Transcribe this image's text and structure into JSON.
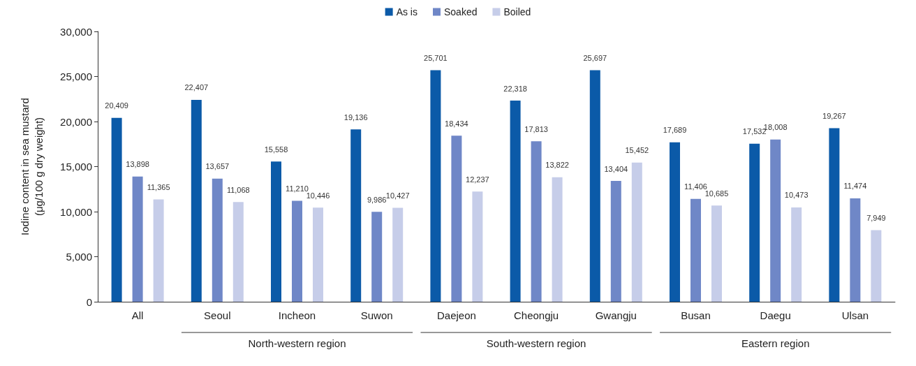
{
  "chart_data": {
    "type": "bar",
    "ylabel": "Iodine content in sea mustard\n(μg/100 g dry weight)",
    "categories": [
      "All",
      "Seoul",
      "Incheon",
      "Suwon",
      "Daejeon",
      "Cheongju",
      "Gwangju",
      "Busan",
      "Daegu",
      "Ulsan"
    ],
    "series": [
      {
        "name": "As is",
        "color": "#0b5aa8",
        "values": [
          20409,
          22407,
          15558,
          19136,
          25701,
          22318,
          25697,
          17689,
          17532,
          19267
        ],
        "value_labels": [
          "20,409",
          "22,407",
          "15,558",
          "19,136",
          "25,701",
          "22,318",
          "25,697",
          "17,689",
          "17,532",
          "19,267"
        ]
      },
      {
        "name": "Soaked",
        "color": "#6f87c7",
        "values": [
          13898,
          13657,
          11210,
          9986,
          18434,
          17813,
          13404,
          11406,
          18008,
          11474
        ],
        "value_labels": [
          "13,898",
          "13,657",
          "11,210",
          "9,986",
          "18,434",
          "17,813",
          "13,404",
          "11,406",
          "18,008",
          "11,474"
        ]
      },
      {
        "name": "Boiled",
        "color": "#c6cde9",
        "values": [
          11365,
          11068,
          10446,
          10427,
          12237,
          13822,
          15452,
          10685,
          10473,
          7949
        ],
        "value_labels": [
          "11,365",
          "11,068",
          "10,446",
          "10,427",
          "12,237",
          "13,822",
          "15,452",
          "10,685",
          "10,473",
          "7,949"
        ]
      }
    ],
    "annotations": [
      "North-western region",
      "South-western region",
      "Eastern region"
    ],
    "ylim": [
      0,
      30000
    ],
    "yticks": [
      0,
      {
        "value": 5000,
        "label": "5,000"
      },
      {
        "value": 10000,
        "label": "10,000"
      },
      {
        "value": 15000,
        "label": "15,000"
      },
      {
        "value": 20000,
        "label": "20,000"
      },
      {
        "value": 25000,
        "label": "25,000"
      },
      {
        "value": 30000,
        "label": "30,000"
      }
    ],
    "grid": false,
    "legend": "top"
  }
}
